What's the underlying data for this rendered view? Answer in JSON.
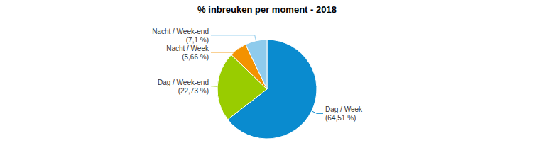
{
  "chart_data": {
    "type": "pie",
    "title": "% inbreuken per moment - 2018",
    "categories": [
      "Dag / Week",
      "Dag / Week-end",
      "Nacht / Week",
      "Nacht / Week-end"
    ],
    "values": [
      64.51,
      22.73,
      5.66,
      7.1
    ],
    "value_labels": [
      "(64,51 %)",
      "(22,73 %)",
      "(5,66 %)",
      "(7,1 %)"
    ],
    "colors": [
      "#0a8bcf",
      "#99cc00",
      "#f39200",
      "#8fcbec"
    ],
    "data_labels": true
  }
}
